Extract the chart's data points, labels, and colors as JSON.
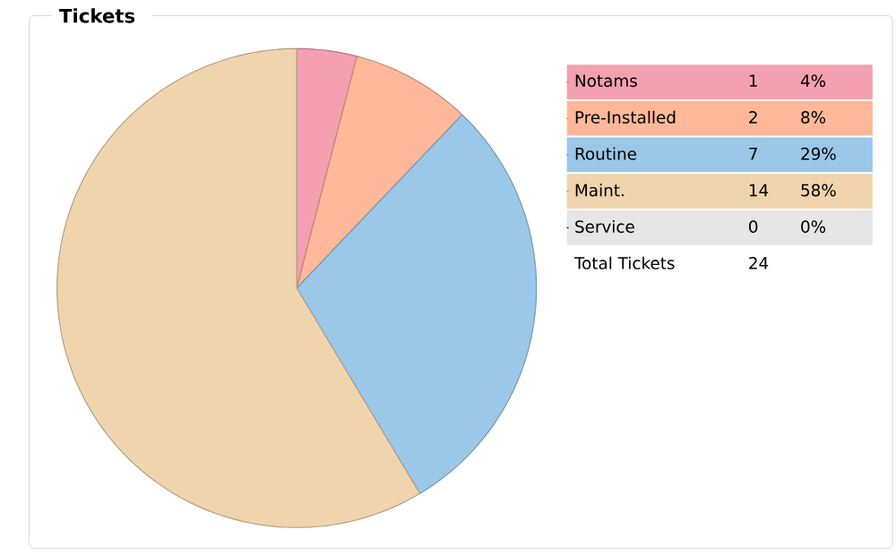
{
  "chart_data": {
    "type": "pie",
    "title": "Tickets",
    "categories": [
      "Notams",
      "Pre-Installed",
      "Routine",
      "Maint.",
      "Service"
    ],
    "values": [
      4,
      8,
      29,
      58,
      0
    ],
    "colors": [
      "#f4a0b0",
      "#ffb89a",
      "#9bc8e8",
      "#f0d4ae",
      "#e6e6e6"
    ],
    "value_labels": [
      "4%",
      "8%",
      "29%",
      "58%",
      "0%"
    ],
    "legend": "right",
    "annotations": [
      "1",
      "2",
      "7",
      "14",
      "0",
      "Total Tickets",
      "24"
    ]
  }
}
